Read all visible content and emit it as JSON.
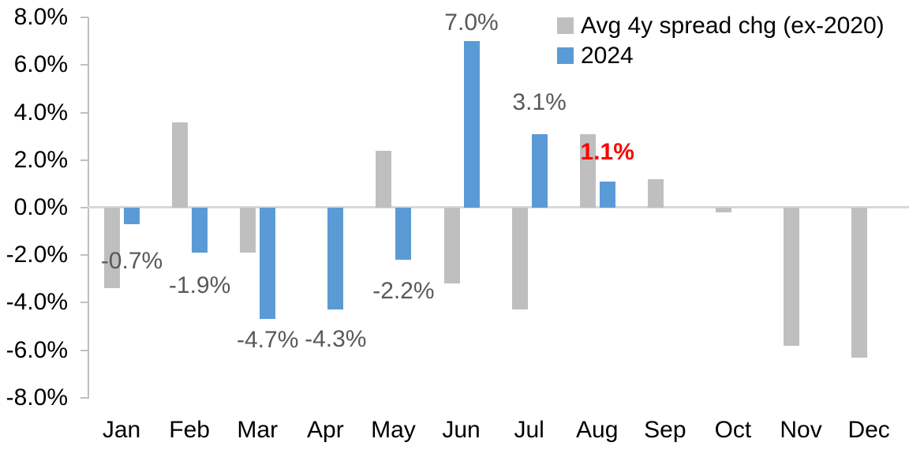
{
  "chart_data": {
    "type": "bar",
    "title": "",
    "categories": [
      "Jan",
      "Feb",
      "Mar",
      "Apr",
      "May",
      "Jun",
      "Jul",
      "Aug",
      "Sep",
      "Oct",
      "Nov",
      "Dec"
    ],
    "series": [
      {
        "name": "Avg 4y spread chg (ex-2020)",
        "color": "#BFBFBF",
        "values": [
          -3.4,
          3.6,
          -1.9,
          0.0,
          2.4,
          -3.2,
          -4.3,
          3.1,
          1.2,
          -0.2,
          -5.8,
          -6.3
        ]
      },
      {
        "name": "2024",
        "color": "#5B9BD5",
        "values": [
          -0.7,
          -1.9,
          -4.7,
          -4.3,
          -2.2,
          7.0,
          3.1,
          1.1,
          null,
          null,
          null,
          null
        ]
      }
    ],
    "data_labels": [
      {
        "category": "Jan",
        "text": "-0.7%",
        "color": "#595959",
        "bold": false,
        "dy": 47
      },
      {
        "category": "Feb",
        "text": "-1.9%",
        "color": "#595959",
        "bold": false,
        "dy": 42
      },
      {
        "category": "Mar",
        "text": "-4.7%",
        "color": "#595959",
        "bold": false,
        "dy": 27
      },
      {
        "category": "Apr",
        "text": "-4.3%",
        "color": "#595959",
        "bold": false,
        "dy": 38
      },
      {
        "category": "May",
        "text": "-2.2%",
        "color": "#595959",
        "bold": false,
        "dy": 40
      },
      {
        "category": "Jun",
        "text": "7.0%",
        "color": "#595959",
        "bold": false,
        "dy": 23
      },
      {
        "category": "Jul",
        "text": "3.1%",
        "color": "#595959",
        "bold": false,
        "dy": 40
      },
      {
        "category": "Aug",
        "text": "1.1%",
        "color": "#FF0000",
        "bold": true,
        "dy": 37
      }
    ],
    "yticks": [
      {
        "v": 8,
        "label": "8.0%"
      },
      {
        "v": 6,
        "label": "6.0%"
      },
      {
        "v": 4,
        "label": "4.0%"
      },
      {
        "v": 2,
        "label": "2.0%"
      },
      {
        "v": 0,
        "label": "0.0%"
      },
      {
        "v": -2,
        "label": "-2.0%"
      },
      {
        "v": -4,
        "label": "-4.0%"
      },
      {
        "v": -6,
        "label": "-6.0%"
      },
      {
        "v": -8,
        "label": "-8.0%"
      }
    ],
    "ylim": [
      -8,
      8
    ],
    "xlabel": "",
    "ylabel": "",
    "grid": false,
    "zero_line": true,
    "legend_position": "top-right",
    "colors": {
      "axis_line": "#BFBFBF",
      "zero_line": "#D9D9D9",
      "axis_text": "#000000",
      "data_label": "#595959",
      "highlight_label": "#FF0000",
      "background": "#FFFFFF"
    }
  }
}
